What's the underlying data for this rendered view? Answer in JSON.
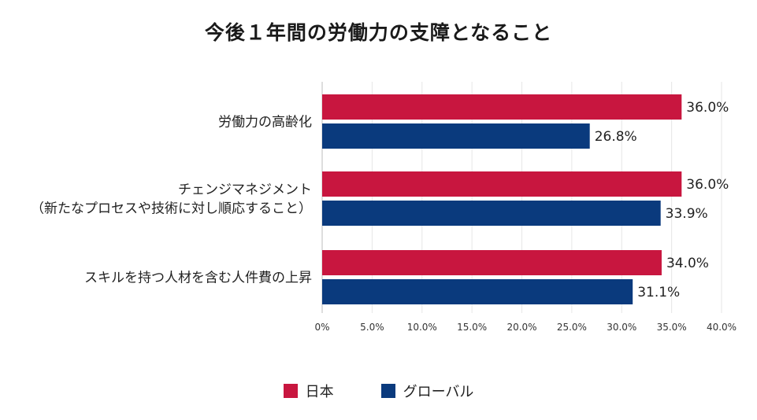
{
  "chart_data": {
    "type": "bar",
    "orientation": "horizontal",
    "title": "今後１年間の労働力の支障となること",
    "categories": [
      [
        "労働力の高齢化"
      ],
      [
        "チェンジマネジメント",
        "（新たなプロセスや技術に対し順応すること）"
      ],
      [
        "スキルを持つ人材を含む人件費の上昇"
      ]
    ],
    "series": [
      {
        "name": "日本",
        "values": [
          36.0,
          36.0,
          34.0
        ],
        "labels": [
          "36.0%",
          "36.0%",
          "34.0%"
        ],
        "color": "#c8163f"
      },
      {
        "name": "グローバル",
        "values": [
          26.8,
          33.9,
          31.1
        ],
        "labels": [
          "26.8%",
          "33.9%",
          "31.1%"
        ],
        "color": "#0a3a7d"
      }
    ],
    "xlim": [
      0,
      40
    ],
    "xticks": [
      0,
      5,
      10,
      15,
      20,
      25,
      30,
      35,
      40
    ],
    "xtick_labels": [
      "0%",
      "5.0%",
      "10.0%",
      "15.0%",
      "20.0%",
      "25.0%",
      "30.0%",
      "35.0%",
      "40.0%"
    ],
    "grid": "vertical",
    "legend_position": "bottom-center"
  }
}
